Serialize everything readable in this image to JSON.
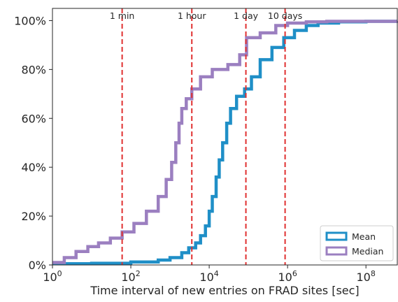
{
  "chart_data": {
    "type": "line",
    "title": "",
    "xlabel": "Time interval of new entries on FRAD sites [sec]",
    "ylabel": "",
    "x_scale": "log",
    "xlim": [
      1,
      631000000
    ],
    "ylim": [
      0,
      1.05
    ],
    "x_ticks": [
      {
        "value": 1,
        "base": "10",
        "exp": "0"
      },
      {
        "value": 100,
        "base": "10",
        "exp": "2"
      },
      {
        "value": 10000,
        "base": "10",
        "exp": "4"
      },
      {
        "value": 1000000,
        "base": "10",
        "exp": "6"
      },
      {
        "value": 100000000,
        "base": "10",
        "exp": "8"
      }
    ],
    "y_ticks": [
      {
        "value": 0,
        "label": "0%"
      },
      {
        "value": 0.2,
        "label": "20%"
      },
      {
        "value": 0.4,
        "label": "40%"
      },
      {
        "value": 0.6,
        "label": "60%"
      },
      {
        "value": 0.8,
        "label": "80%"
      },
      {
        "value": 1.0,
        "label": "100%"
      }
    ],
    "grid": false,
    "legend_position": "bottom-right",
    "annotations": [
      {
        "label": "1 min",
        "x": 60
      },
      {
        "label": "1 hour",
        "x": 3600
      },
      {
        "label": "1 day",
        "x": 86400
      },
      {
        "label": "10 days",
        "x": 864000
      }
    ],
    "series": [
      {
        "name": "Mean",
        "color": "#1f8fc7",
        "points": [
          [
            1,
            0.005
          ],
          [
            10,
            0.007
          ],
          [
            100,
            0.012
          ],
          [
            500,
            0.02
          ],
          [
            1000,
            0.03
          ],
          [
            2000,
            0.05
          ],
          [
            3000,
            0.07
          ],
          [
            4500,
            0.09
          ],
          [
            6000,
            0.12
          ],
          [
            8000,
            0.16
          ],
          [
            10000,
            0.22
          ],
          [
            12000,
            0.28
          ],
          [
            15000,
            0.36
          ],
          [
            18000,
            0.43
          ],
          [
            22000,
            0.5
          ],
          [
            28000,
            0.58
          ],
          [
            35000,
            0.64
          ],
          [
            50000,
            0.69
          ],
          [
            80000,
            0.72
          ],
          [
            120000,
            0.77
          ],
          [
            200000,
            0.84
          ],
          [
            400000,
            0.89
          ],
          [
            800000,
            0.93
          ],
          [
            1500000,
            0.96
          ],
          [
            3000000,
            0.98
          ],
          [
            6000000,
            0.99
          ],
          [
            20000000,
            0.995
          ],
          [
            100000000,
            0.997
          ],
          [
            631000000,
            0.998
          ]
        ]
      },
      {
        "name": "Median",
        "color": "#9b7fc0",
        "points": [
          [
            1,
            0.01
          ],
          [
            2,
            0.03
          ],
          [
            4,
            0.055
          ],
          [
            8,
            0.075
          ],
          [
            15,
            0.09
          ],
          [
            30,
            0.11
          ],
          [
            60,
            0.135
          ],
          [
            120,
            0.17
          ],
          [
            250,
            0.22
          ],
          [
            500,
            0.28
          ],
          [
            800,
            0.35
          ],
          [
            1100,
            0.42
          ],
          [
            1400,
            0.5
          ],
          [
            1700,
            0.58
          ],
          [
            2000,
            0.64
          ],
          [
            2600,
            0.68
          ],
          [
            3600,
            0.72
          ],
          [
            6000,
            0.77
          ],
          [
            12000,
            0.8
          ],
          [
            30000,
            0.82
          ],
          [
            60000,
            0.86
          ],
          [
            90000,
            0.93
          ],
          [
            200000,
            0.95
          ],
          [
            500000,
            0.98
          ],
          [
            1000000,
            0.99
          ],
          [
            3000000,
            0.995
          ],
          [
            10000000,
            0.997
          ],
          [
            631000000,
            0.998
          ]
        ]
      }
    ]
  }
}
